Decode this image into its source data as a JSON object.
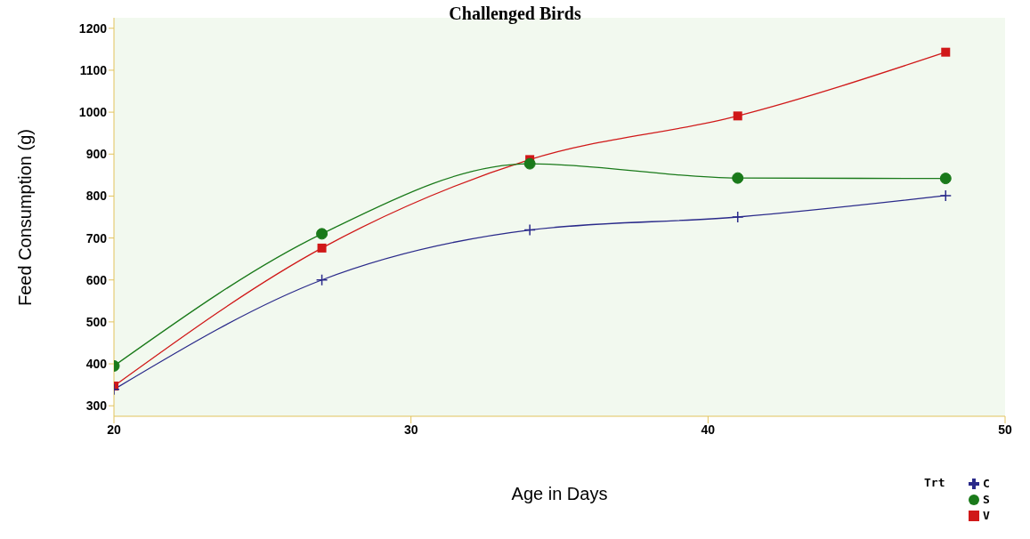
{
  "chart_data": {
    "type": "line",
    "title": "Challenged Birds",
    "xlabel": "Age in Days",
    "ylabel": "Feed Consumption (g)",
    "legend_title": "Trt",
    "x": [
      20,
      27,
      34,
      41,
      48
    ],
    "series": [
      {
        "name": "C",
        "color": "#2a2a8a",
        "marker": "cross",
        "values": [
          339,
          600,
          719,
          750,
          801
        ]
      },
      {
        "name": "S",
        "color": "#1a7a1a",
        "marker": "circle",
        "values": [
          395,
          710,
          877,
          843,
          842
        ]
      },
      {
        "name": "V",
        "color": "#d01818",
        "marker": "square",
        "values": [
          347,
          676,
          887,
          991,
          1143
        ]
      }
    ],
    "xlim": [
      20,
      50
    ],
    "xticks": [
      20,
      30,
      40,
      50
    ],
    "ylim": [
      275,
      1225
    ],
    "yticks": [
      300,
      400,
      500,
      600,
      700,
      800,
      900,
      1000,
      1100,
      1200
    ],
    "legend": "bottom right"
  }
}
